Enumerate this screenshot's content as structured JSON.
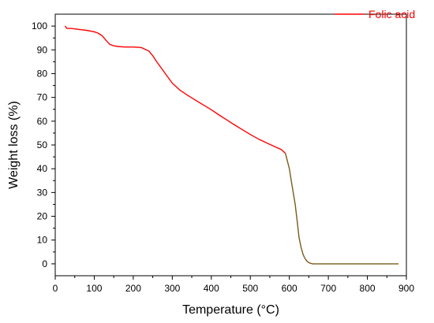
{
  "chart_data": {
    "type": "line",
    "xlabel": "Temperature (°C)",
    "ylabel": "Weight loss (%)",
    "xlim": [
      0,
      900
    ],
    "ylim": [
      -5,
      105
    ],
    "xticks": [
      0,
      100,
      200,
      300,
      400,
      500,
      600,
      700,
      800,
      900
    ],
    "yticks": [
      0,
      10,
      20,
      30,
      40,
      50,
      60,
      70,
      80,
      90,
      100
    ],
    "grid": false,
    "legend_position": "top-right",
    "series": [
      {
        "name": "Folic acid",
        "color": "#ff0000",
        "x": [
          25,
          30,
          40,
          60,
          80,
          100,
          110,
          120,
          130,
          140,
          150,
          160,
          180,
          200,
          220,
          240,
          250,
          260,
          280,
          300,
          320,
          340,
          360,
          380,
          400,
          420,
          440,
          460,
          480,
          500,
          520,
          540,
          560,
          580,
          590
        ],
        "y": [
          100,
          99,
          99,
          98.6,
          98.2,
          97.6,
          97,
          96,
          94,
          92.3,
          91.7,
          91.4,
          91.2,
          91.2,
          91,
          89.5,
          87.5,
          85,
          80.5,
          76,
          73,
          70.8,
          68.8,
          66.8,
          64.8,
          62.6,
          60.5,
          58.4,
          56.4,
          54.4,
          52.6,
          51,
          49.5,
          48,
          46.5
        ]
      },
      {
        "name": "",
        "color": "#7a5b1a",
        "x": [
          590,
          600,
          605,
          610,
          615,
          620,
          625,
          630,
          635,
          640,
          645,
          650,
          655,
          660,
          665,
          680,
          700,
          750,
          800,
          850,
          880
        ],
        "y": [
          46.5,
          40,
          35,
          30,
          25,
          18,
          11,
          7,
          4,
          2.3,
          1.2,
          0.5,
          0.2,
          0,
          0,
          0,
          0,
          0,
          0,
          0,
          0
        ]
      }
    ]
  }
}
